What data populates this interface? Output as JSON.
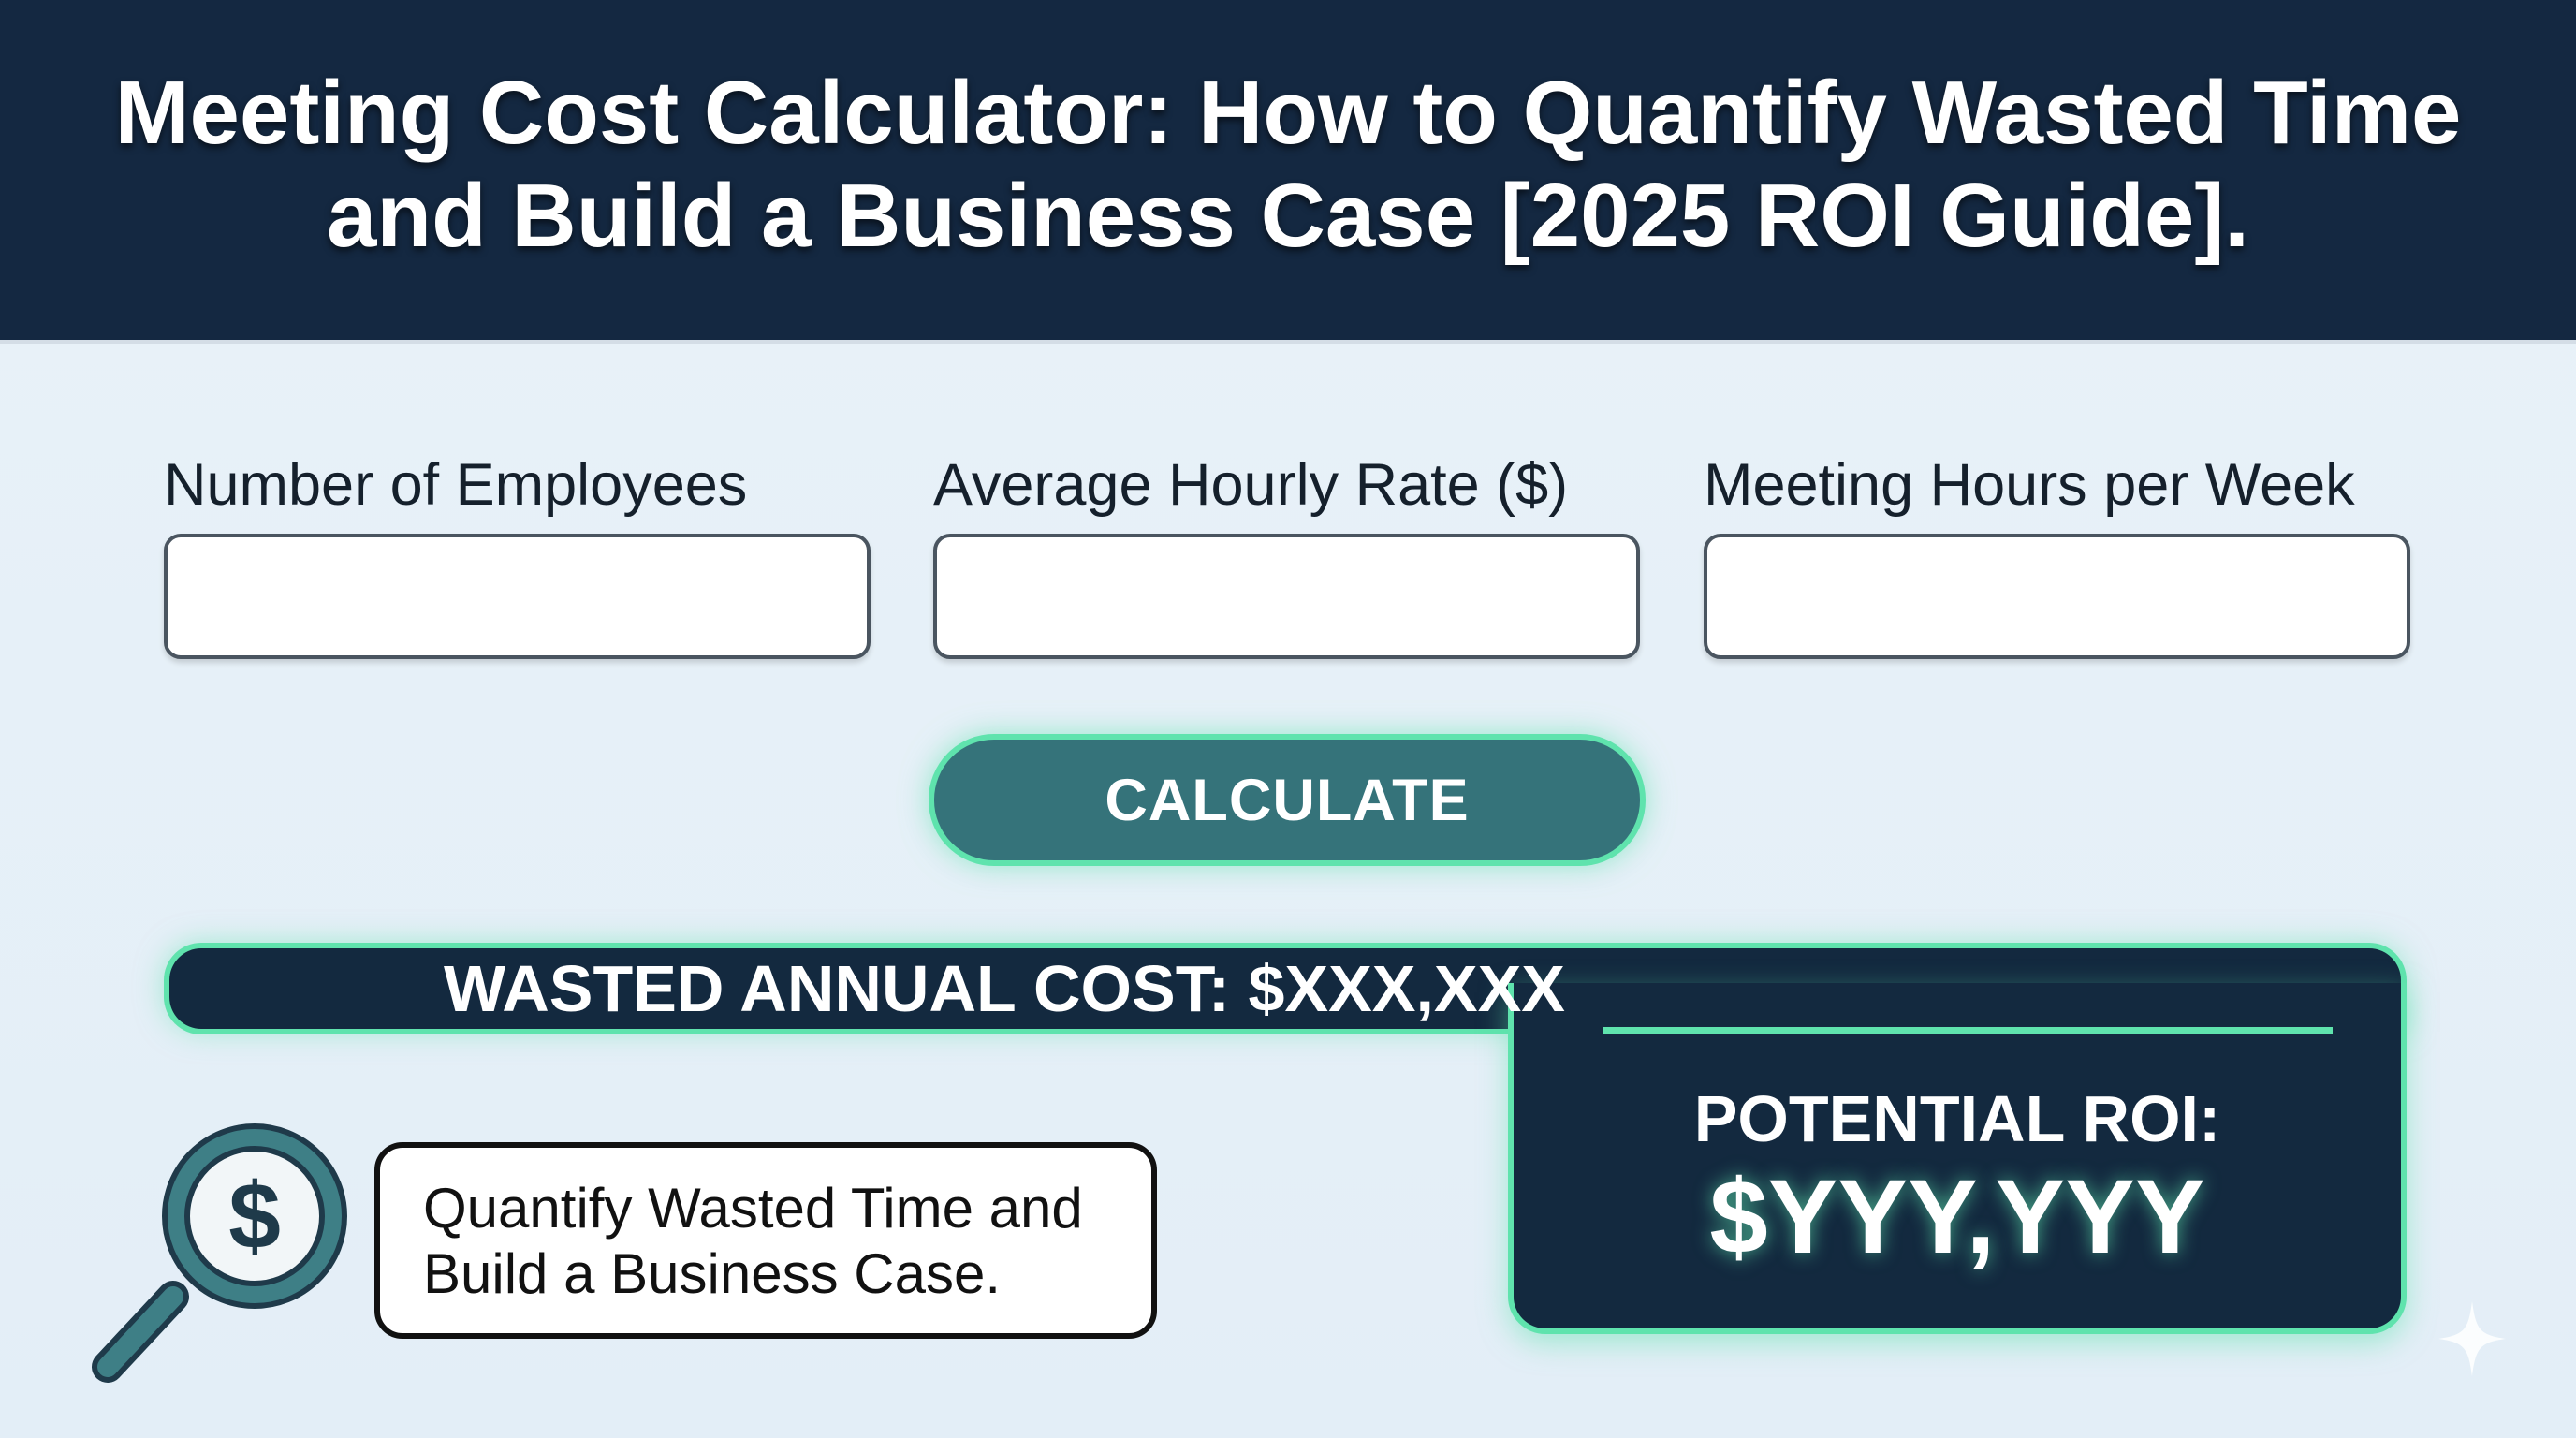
{
  "header": {
    "title_line1": "Meeting Cost Calculator: How to Quantify Wasted Time",
    "title_line2": "and Build a Business Case [2025 ROI Guide]."
  },
  "form": {
    "fields": [
      {
        "label": "Number of Employees",
        "value": ""
      },
      {
        "label": "Average Hourly Rate ($)",
        "value": ""
      },
      {
        "label": "Meeting Hours per Week",
        "value": ""
      }
    ],
    "calculate_label": "CALCULATE"
  },
  "results": {
    "wasted_cost": "WASTED ANNUAL COST: $XXX,XXX",
    "roi_label": "POTENTIAL ROI:",
    "roi_value": "$YYY,YYY"
  },
  "note": {
    "line1": "Quantify Wasted Time and",
    "line2": "Build a Business Case.",
    "icon": "magnifier-dollar-icon"
  },
  "colors": {
    "header": "#142841",
    "accent": "#5fe3ad",
    "button": "#35737a",
    "panel": "#13293f"
  }
}
